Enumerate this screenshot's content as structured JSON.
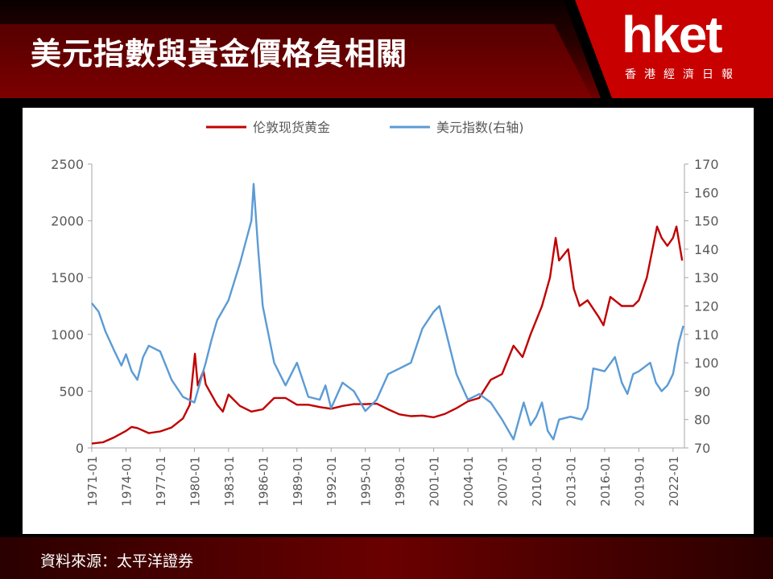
{
  "header": {
    "title": "美元指數與黃金價格負相關",
    "logo_text": "hket",
    "logo_subtitle": "香港經濟日報"
  },
  "footer": {
    "source": "資料來源：太平洋證券"
  },
  "colors": {
    "gold": "#c00000",
    "usd": "#5b9bd5",
    "header_red": "#b30000"
  },
  "chart_data": {
    "type": "line",
    "title": "",
    "xlabel": "",
    "ylabel_left": "",
    "ylabel_right": "",
    "legend": "top-center",
    "grid": false,
    "x_ticks": [
      "1971-01",
      "1974-01",
      "1977-01",
      "1980-01",
      "1983-01",
      "1986-01",
      "1989-01",
      "1992-01",
      "1995-01",
      "1998-01",
      "2001-01",
      "2004-01",
      "2007-01",
      "2010-01",
      "2013-01",
      "2016-01",
      "2019-01",
      "2022-01"
    ],
    "y_left": {
      "range": [
        0,
        2500
      ],
      "ticks": [
        "0",
        "500",
        "1000",
        "1500",
        "2000",
        "2500"
      ]
    },
    "y_right": {
      "range": [
        70,
        170
      ],
      "ticks": [
        "70",
        "80",
        "90",
        "100",
        "110",
        "120",
        "130",
        "140",
        "150",
        "160",
        "170"
      ]
    },
    "series": [
      {
        "name": "伦敦现货黄金",
        "axis": "left",
        "color": "#c00000",
        "points": [
          [
            1971.0,
            38
          ],
          [
            1972.0,
            50
          ],
          [
            1973.0,
            95
          ],
          [
            1974.0,
            150
          ],
          [
            1974.5,
            185
          ],
          [
            1975.0,
            175
          ],
          [
            1976.0,
            130
          ],
          [
            1977.0,
            145
          ],
          [
            1978.0,
            180
          ],
          [
            1979.0,
            260
          ],
          [
            1979.6,
            380
          ],
          [
            1980.05,
            830
          ],
          [
            1980.3,
            550
          ],
          [
            1980.8,
            680
          ],
          [
            1981.0,
            560
          ],
          [
            1982.0,
            380
          ],
          [
            1982.5,
            320
          ],
          [
            1983.0,
            470
          ],
          [
            1984.0,
            370
          ],
          [
            1985.0,
            320
          ],
          [
            1986.0,
            340
          ],
          [
            1987.0,
            440
          ],
          [
            1988.0,
            440
          ],
          [
            1989.0,
            380
          ],
          [
            1990.0,
            380
          ],
          [
            1991.0,
            360
          ],
          [
            1992.0,
            345
          ],
          [
            1993.0,
            370
          ],
          [
            1994.0,
            385
          ],
          [
            1995.0,
            385
          ],
          [
            1996.0,
            390
          ],
          [
            1997.0,
            340
          ],
          [
            1998.0,
            295
          ],
          [
            1999.0,
            280
          ],
          [
            2000.0,
            285
          ],
          [
            2001.0,
            270
          ],
          [
            2002.0,
            300
          ],
          [
            2003.0,
            350
          ],
          [
            2004.0,
            410
          ],
          [
            2005.0,
            440
          ],
          [
            2006.0,
            600
          ],
          [
            2007.0,
            650
          ],
          [
            2008.0,
            900
          ],
          [
            2008.8,
            800
          ],
          [
            2009.5,
            1000
          ],
          [
            2010.5,
            1250
          ],
          [
            2011.2,
            1500
          ],
          [
            2011.7,
            1850
          ],
          [
            2012.0,
            1650
          ],
          [
            2012.8,
            1750
          ],
          [
            2013.3,
            1400
          ],
          [
            2013.8,
            1250
          ],
          [
            2014.5,
            1300
          ],
          [
            2015.5,
            1150
          ],
          [
            2015.9,
            1080
          ],
          [
            2016.5,
            1330
          ],
          [
            2017.5,
            1250
          ],
          [
            2018.5,
            1250
          ],
          [
            2019.0,
            1300
          ],
          [
            2019.7,
            1500
          ],
          [
            2020.6,
            1950
          ],
          [
            2021.0,
            1850
          ],
          [
            2021.5,
            1780
          ],
          [
            2022.0,
            1850
          ],
          [
            2022.3,
            1950
          ],
          [
            2022.8,
            1650
          ]
        ]
      },
      {
        "name": "美元指数(右轴)",
        "axis": "right",
        "color": "#5b9bd5",
        "points": [
          [
            1971.0,
            121
          ],
          [
            1971.6,
            118
          ],
          [
            1972.2,
            111
          ],
          [
            1973.0,
            104
          ],
          [
            1973.6,
            99
          ],
          [
            1974.0,
            103
          ],
          [
            1974.5,
            97
          ],
          [
            1975.0,
            94
          ],
          [
            1975.5,
            102
          ],
          [
            1976.0,
            106
          ],
          [
            1976.5,
            105
          ],
          [
            1977.0,
            104
          ],
          [
            1978.0,
            94
          ],
          [
            1979.0,
            88
          ],
          [
            1980.0,
            86
          ],
          [
            1981.0,
            100
          ],
          [
            1981.5,
            108
          ],
          [
            1982.0,
            115
          ],
          [
            1983.0,
            122
          ],
          [
            1984.0,
            135
          ],
          [
            1985.0,
            150
          ],
          [
            1985.2,
            163
          ],
          [
            1985.6,
            140
          ],
          [
            1986.0,
            120
          ],
          [
            1987.0,
            100
          ],
          [
            1988.0,
            92
          ],
          [
            1989.0,
            100
          ],
          [
            1990.0,
            88
          ],
          [
            1991.0,
            87
          ],
          [
            1991.5,
            92
          ],
          [
            1992.0,
            84
          ],
          [
            1993.0,
            93
          ],
          [
            1994.0,
            90
          ],
          [
            1995.0,
            83
          ],
          [
            1996.0,
            87
          ],
          [
            1997.0,
            96
          ],
          [
            1998.0,
            98
          ],
          [
            1999.0,
            100
          ],
          [
            2000.0,
            112
          ],
          [
            2001.0,
            118
          ],
          [
            2001.5,
            120
          ],
          [
            2002.0,
            112
          ],
          [
            2003.0,
            96
          ],
          [
            2004.0,
            87
          ],
          [
            2005.0,
            89
          ],
          [
            2006.0,
            86
          ],
          [
            2007.0,
            80
          ],
          [
            2008.0,
            73
          ],
          [
            2008.9,
            86
          ],
          [
            2009.5,
            78
          ],
          [
            2010.0,
            81
          ],
          [
            2010.5,
            86
          ],
          [
            2011.0,
            76
          ],
          [
            2011.5,
            73
          ],
          [
            2012.0,
            80
          ],
          [
            2013.0,
            81
          ],
          [
            2014.0,
            80
          ],
          [
            2014.5,
            84
          ],
          [
            2015.0,
            98
          ],
          [
            2016.0,
            97
          ],
          [
            2016.9,
            102
          ],
          [
            2017.5,
            93
          ],
          [
            2018.0,
            89
          ],
          [
            2018.5,
            96
          ],
          [
            2019.0,
            97
          ],
          [
            2020.0,
            100
          ],
          [
            2020.5,
            93
          ],
          [
            2021.0,
            90
          ],
          [
            2021.5,
            92
          ],
          [
            2022.0,
            96
          ],
          [
            2022.5,
            107
          ],
          [
            2022.9,
            113
          ]
        ]
      }
    ]
  }
}
